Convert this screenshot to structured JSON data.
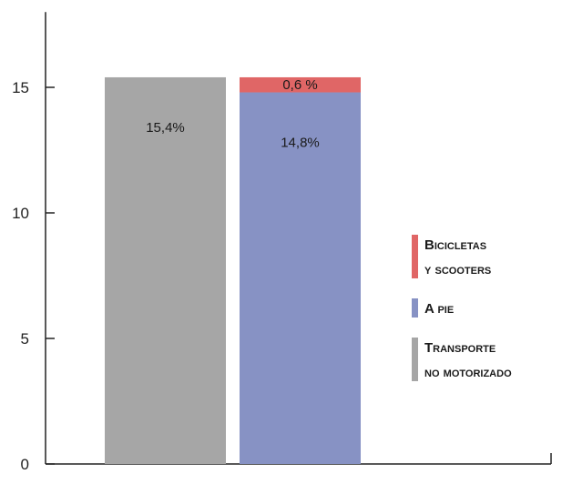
{
  "chart_data": {
    "type": "bar",
    "stacked": true,
    "ylim": [
      0,
      18
    ],
    "yticks": [
      0,
      5,
      10,
      15
    ],
    "ytick_labels": [
      "0",
      "5",
      "10",
      "15"
    ],
    "title": "",
    "xlabel": "",
    "ylabel": "",
    "grid": false,
    "legend_position": "right",
    "bars": [
      {
        "segments": [
          {
            "series": "transporte",
            "value": 15.4,
            "label": "15,4%"
          }
        ]
      },
      {
        "segments": [
          {
            "series": "a_pie",
            "value": 14.8,
            "label": "14,8%"
          },
          {
            "series": "bicicletas",
            "value": 0.6,
            "label": "0,6 %"
          }
        ]
      }
    ],
    "series": [
      {
        "key": "bicicletas",
        "name_lines": [
          "Bicicletas",
          "y scooters"
        ],
        "color": "#e06666"
      },
      {
        "key": "a_pie",
        "name_lines": [
          "A pie"
        ],
        "color": "#8792c4"
      },
      {
        "key": "transporte",
        "name_lines": [
          "Transporte",
          "no motorizado"
        ],
        "color": "#a6a6a6"
      }
    ]
  }
}
